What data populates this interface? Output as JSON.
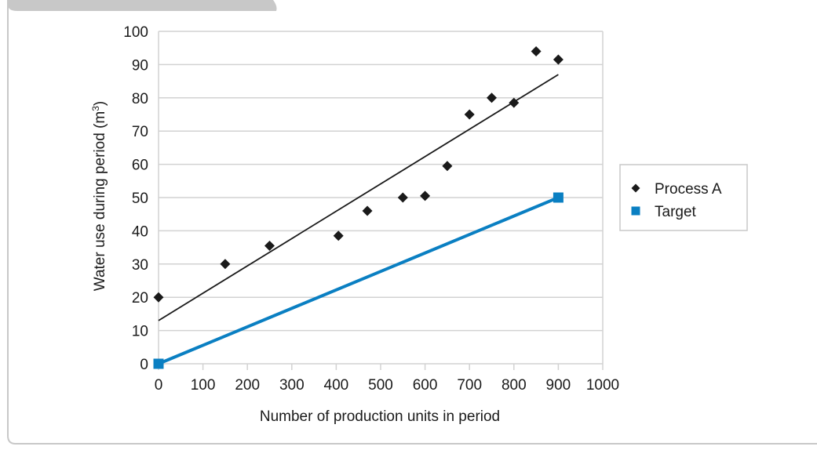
{
  "colors": {
    "frame": "#c8c8c8",
    "grid": "#d2d2d2",
    "process_a": "#1a1a1a",
    "target": "#0a7fc2"
  },
  "chart_data": {
    "type": "scatter",
    "xlabel": "Number of production units in period",
    "ylabel": "Water use during period (m",
    "ylabel_superscript": "3",
    "ylabel_suffix": ")",
    "xlim": [
      0,
      1000
    ],
    "ylim": [
      0,
      100
    ],
    "x_ticks": [
      0,
      100,
      200,
      300,
      400,
      500,
      600,
      700,
      800,
      900,
      1000
    ],
    "y_ticks": [
      0,
      10,
      20,
      30,
      40,
      50,
      60,
      70,
      80,
      90,
      100
    ],
    "grid": "horizontal",
    "legend_position": "right",
    "series": [
      {
        "name": "Process A",
        "marker": "diamond",
        "color": "#1a1a1a",
        "x": [
          0,
          150,
          250,
          405,
          470,
          550,
          600,
          650,
          700,
          750,
          800,
          850,
          900
        ],
        "y": [
          20,
          30,
          35.5,
          38.5,
          46,
          50,
          50.5,
          59.5,
          75,
          80,
          78.5,
          94,
          91.5
        ],
        "trendline": {
          "x": [
            0,
            900
          ],
          "y": [
            13,
            87
          ]
        }
      },
      {
        "name": "Target",
        "marker": "square",
        "color": "#0a7fc2",
        "x": [
          0,
          900
        ],
        "y": [
          0,
          50
        ],
        "line": true
      }
    ]
  }
}
